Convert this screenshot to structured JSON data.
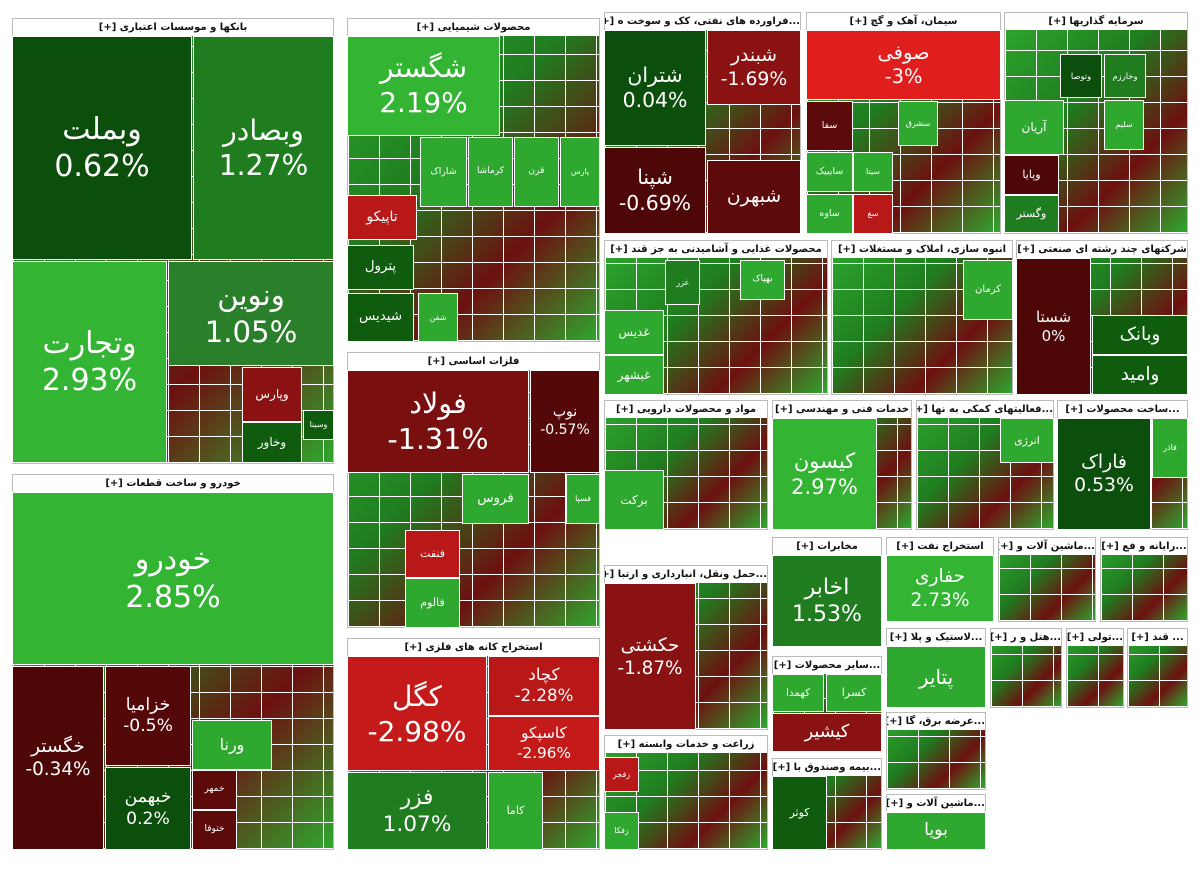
{
  "chart_data": {
    "type": "treemap",
    "sectors": [
      {
        "title": "بانکها و موسسات اعتباری [+]",
        "tiles": [
          {
            "name": "وبملت",
            "value": 0.62,
            "value_label": "0.62%",
            "color": "#0c4f0c"
          },
          {
            "name": "وبصادر",
            "value": 1.27,
            "value_label": "1.27%",
            "color": "#1f7d1f"
          },
          {
            "name": "وتجارت",
            "value": 2.93,
            "value_label": "2.93%",
            "color": "#33b533"
          },
          {
            "name": "ونوین",
            "value": 1.05,
            "value_label": "1.05%",
            "color": "#2a7f2a"
          },
          {
            "name": "وپارس",
            "color": "#8a1212"
          },
          {
            "name": "وخاور",
            "color": "#0f5c0f"
          },
          {
            "name": "وسینا",
            "color": "#0f5c0f"
          }
        ]
      },
      {
        "title": "خودرو و ساخت قطعات [+]",
        "tiles": [
          {
            "name": "خودرو",
            "value": 2.85,
            "value_label": "2.85%",
            "color": "#33b533"
          },
          {
            "name": "خگستر",
            "value": -0.34,
            "value_label": "-0.34%",
            "color": "#4d0707"
          },
          {
            "name": "خزامیا",
            "value": -0.5,
            "value_label": "-0.5%",
            "color": "#540808"
          },
          {
            "name": "خبهمن",
            "value": 0.2,
            "value_label": "0.2%",
            "color": "#0c4f0c"
          },
          {
            "name": "ورنا",
            "color": "#2ea82e"
          },
          {
            "name": "خمهر",
            "color": "#5c0a0a"
          },
          {
            "name": "ختوقا",
            "color": "#5c0a0a"
          }
        ]
      },
      {
        "title": "محصولات شیمیایی [+]",
        "tiles": [
          {
            "name": "شگستر",
            "value": 2.19,
            "value_label": "2.19%",
            "color": "#33b533"
          },
          {
            "name": "پارس",
            "color": "#2ea82e"
          },
          {
            "name": "قرن",
            "color": "#2ea82e"
          },
          {
            "name": "کرماشا",
            "color": "#2ea82e"
          },
          {
            "name": "شاراک",
            "color": "#2ea82e"
          },
          {
            "name": "تاپیکو",
            "color": "#b81818"
          },
          {
            "name": "پترول",
            "color": "#0f5c0f"
          },
          {
            "name": "شیدیس",
            "color": "#0f5c0f"
          },
          {
            "name": "شفن",
            "color": "#2ea82e"
          }
        ]
      },
      {
        "title": "فلزات اساسی [+]",
        "tiles": [
          {
            "name": "فولاد",
            "value": -1.31,
            "value_label": "-1.31%",
            "color": "#7a0f0f"
          },
          {
            "name": "نوپ",
            "value": -0.57,
            "value_label": "-0.57%",
            "color": "#540808"
          },
          {
            "name": "فروس",
            "color": "#2ea82e"
          },
          {
            "name": "فسپا",
            "color": "#2ea82e"
          },
          {
            "name": "فنفت",
            "color": "#b81818"
          },
          {
            "name": "فالوم",
            "color": "#2ea82e"
          }
        ]
      },
      {
        "title": "استخراج کانه های فلزی [+]",
        "tiles": [
          {
            "name": "کگل",
            "value": -2.98,
            "value_label": "-2.98%",
            "color": "#c41a1a"
          },
          {
            "name": "کچاد",
            "value": -2.28,
            "value_label": "-2.28%",
            "color": "#b81818"
          },
          {
            "name": "کاسپکو",
            "value": -2.96,
            "value_label": "-2.96%",
            "color": "#c41a1a"
          },
          {
            "name": "فزر",
            "value": 1.07,
            "value_label": "1.07%",
            "color": "#1f7d1f"
          },
          {
            "name": "کاما",
            "color": "#2ea82e"
          }
        ]
      },
      {
        "title": "...فراورده های نفتی، کک و سوخت ه [+]",
        "tiles": [
          {
            "name": "شتران",
            "value": 0.04,
            "value_label": "0.04%",
            "color": "#0c4f0c"
          },
          {
            "name": "شبندر",
            "value": -1.69,
            "value_label": "-1.69%",
            "color": "#8a1212"
          },
          {
            "name": "شپنا",
            "value": -0.69,
            "value_label": "-0.69%",
            "color": "#4d0707"
          },
          {
            "name": "شبهرن",
            "color": "#5c0a0a"
          }
        ]
      },
      {
        "title": "سیمان، آهک و گچ [+]",
        "tiles": [
          {
            "name": "صوفی",
            "value": -3,
            "value_label": "-3%",
            "color": "#e01e1e"
          },
          {
            "name": "سفا",
            "color": "#5c0a0a"
          },
          {
            "name": "سشرق",
            "color": "#2ea82e"
          },
          {
            "name": "سایبیک",
            "color": "#2ea82e"
          },
          {
            "name": "سیتا",
            "color": "#2ea82e"
          },
          {
            "name": "ساوه",
            "color": "#2ea82e"
          },
          {
            "name": "سغ",
            "color": "#b81818"
          }
        ]
      },
      {
        "title": "سرمایه گذاریها [+]",
        "tiles": [
          {
            "name": "وتوصا",
            "color": "#0c4f0c"
          },
          {
            "name": "وخارزم",
            "color": "#1f7d1f"
          },
          {
            "name": "آریان",
            "color": "#2ea82e"
          },
          {
            "name": "سلیم",
            "color": "#2ea82e"
          },
          {
            "name": "وپایا",
            "color": "#4d0707"
          },
          {
            "name": "وگستر",
            "color": "#1f7d1f"
          }
        ]
      },
      {
        "title": "محصولات غذایی و آشامیدنی به جز قند [+]",
        "tiles": [
          {
            "name": "غزر",
            "color": "#1f7d1f"
          },
          {
            "name": "بهپاک",
            "color": "#2ea82e"
          },
          {
            "name": "غدیس",
            "color": "#2ea82e"
          },
          {
            "name": "غبشهر",
            "color": "#2ea82e"
          }
        ]
      },
      {
        "title": "انبوه سازی، املاک و مستغلات [+]",
        "tiles": [
          {
            "name": "کرمان",
            "color": "#2ea82e"
          }
        ]
      },
      {
        "title": "شرکتهای چند رشته ای صنعتی [+]",
        "tiles": [
          {
            "name": "شستا",
            "value": 0,
            "value_label": "0%",
            "color": "#4d0707"
          },
          {
            "name": "وبانک",
            "color": "#0f5c0f"
          },
          {
            "name": "وامید",
            "color": "#0f5c0f"
          }
        ]
      },
      {
        "title": "مواد و محصولات دارویی [+]",
        "tiles": [
          {
            "name": "برکت",
            "color": "#2ea82e"
          }
        ]
      },
      {
        "title": "خدمات فنی و مهندسی [+]",
        "tiles": [
          {
            "name": "کیسون",
            "value": 2.97,
            "value_label": "2.97%",
            "color": "#33b533"
          }
        ]
      },
      {
        "title": "...فعالیتهای کمکی به نها [+]",
        "tiles": [
          {
            "name": "انرژی",
            "color": "#2ea82e"
          }
        ]
      },
      {
        "title": "...ساخت محصولات [+]",
        "tiles": [
          {
            "name": "فاراک",
            "value": 0.53,
            "value_label": "0.53%",
            "color": "#0c4f0c"
          },
          {
            "name": "فاذر",
            "color": "#2ea82e"
          }
        ]
      },
      {
        "title": "...حمل ونقل، انبارداری و ارتبا [+]",
        "tiles": [
          {
            "name": "حکشتی",
            "value": -1.87,
            "value_label": "-1.87%",
            "color": "#8a1212"
          }
        ]
      },
      {
        "title": "زراعت و خدمات وابسته [+]",
        "tiles": [
          {
            "name": "زفجر",
            "color": "#b81818"
          },
          {
            "name": "زفکا",
            "color": "#2ea82e"
          }
        ]
      },
      {
        "title": "مخابرات [+]",
        "tiles": [
          {
            "name": "اخابر",
            "value": 1.53,
            "value_label": "1.53%",
            "color": "#1f7d1f"
          }
        ]
      },
      {
        "title": "استخراج نفت [+]",
        "tiles": [
          {
            "name": "حفاری",
            "value": 2.73,
            "value_label": "2.73%",
            "color": "#33b533"
          }
        ]
      },
      {
        "title": "...سایر محصولات [+]",
        "tiles": [
          {
            "name": "کهمدا",
            "color": "#2ea82e"
          },
          {
            "name": "کسرا",
            "color": "#2ea82e"
          },
          {
            "name": "کیشیر",
            "color": "#8a1212"
          }
        ]
      },
      {
        "title": "...بیمه وصندوق با [+]",
        "tiles": [
          {
            "name": "کوثر",
            "color": "#0f5c0f"
          }
        ]
      },
      {
        "title": "...ماشین آلات و [+]",
        "tiles": []
      },
      {
        "title": "...رایانه و فع [+]",
        "tiles": []
      },
      {
        "title": "...لاستیک و پلا [+]",
        "tiles": [
          {
            "name": "پتایر",
            "color": "#2ea82e"
          }
        ]
      },
      {
        "title": "...هتل و ر [+]",
        "tiles": []
      },
      {
        "title": "...تولی [+]",
        "tiles": []
      },
      {
        "title": "... قند [+]",
        "tiles": []
      },
      {
        "title": "...عرضه برق، گا [+]",
        "tiles": []
      },
      {
        "title": "...ماشین آلات و [+]",
        "tiles": [
          {
            "name": "بویا",
            "color": "#2ea82e"
          }
        ]
      }
    ]
  }
}
